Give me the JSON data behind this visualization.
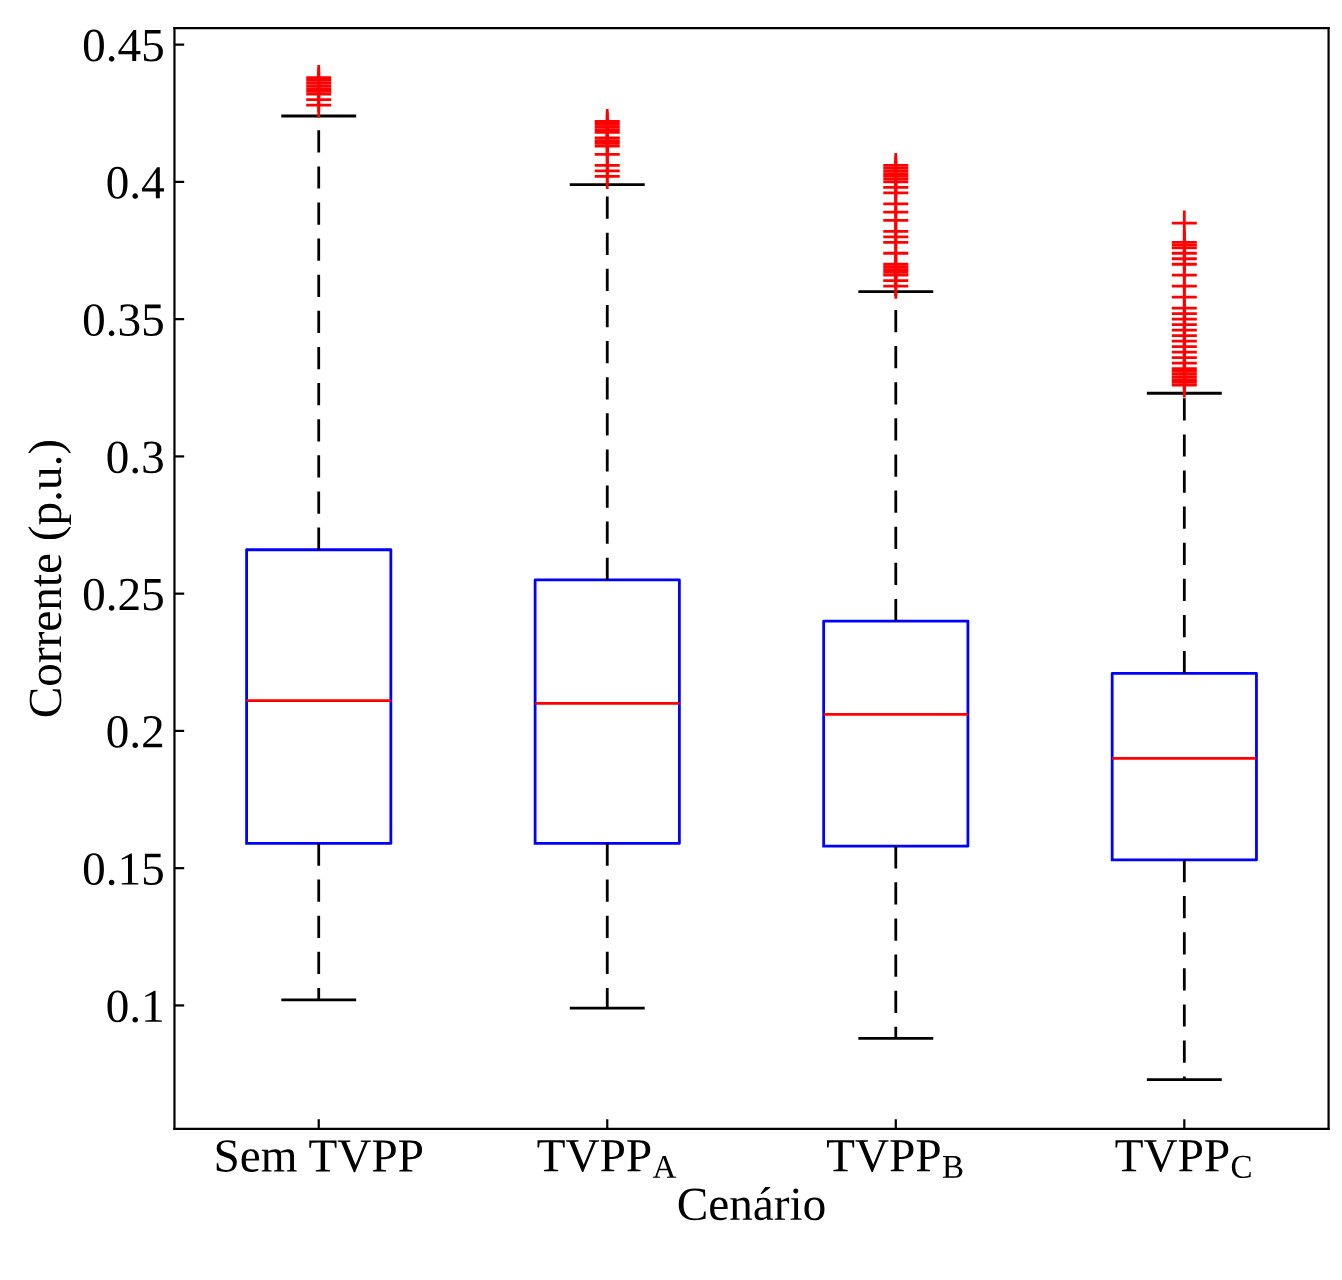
{
  "chart_data": {
    "type": "box",
    "xlabel": "Cenário",
    "ylabel": "Corrente (p.u.)",
    "categories": [
      "Sem TVPP",
      "TVPP$_{A}$",
      "TVPP$_{B}$",
      "TVPP$_{C}$"
    ],
    "ylim": [
      0.055,
      0.456
    ],
    "yticks": [
      0.1,
      0.15,
      0.2,
      0.25,
      0.3,
      0.35,
      0.4,
      0.45
    ],
    "grid": false,
    "marker": "cross",
    "boxes": [
      {
        "low": 0.102,
        "q1": 0.159,
        "median": 0.211,
        "q3": 0.266,
        "high": 0.424,
        "outliers": [
          0.428,
          0.43,
          0.432,
          0.433,
          0.434,
          0.435,
          0.436,
          0.437,
          0.438
        ]
      },
      {
        "low": 0.099,
        "q1": 0.159,
        "median": 0.21,
        "q3": 0.255,
        "high": 0.399,
        "outliers": [
          0.402,
          0.404,
          0.406,
          0.41,
          0.413,
          0.414,
          0.415,
          0.416,
          0.418,
          0.419,
          0.42,
          0.421,
          0.422
        ]
      },
      {
        "low": 0.088,
        "q1": 0.158,
        "median": 0.206,
        "q3": 0.24,
        "high": 0.36,
        "outliers": [
          0.362,
          0.364,
          0.366,
          0.367,
          0.368,
          0.369,
          0.37,
          0.374,
          0.378,
          0.38,
          0.382,
          0.386,
          0.389,
          0.392,
          0.396,
          0.398,
          0.4,
          0.401,
          0.402,
          0.403,
          0.404,
          0.405,
          0.406
        ]
      },
      {
        "low": 0.073,
        "q1": 0.153,
        "median": 0.19,
        "q3": 0.221,
        "high": 0.323,
        "outliers": [
          0.326,
          0.327,
          0.328,
          0.329,
          0.33,
          0.331,
          0.332,
          0.334,
          0.336,
          0.338,
          0.34,
          0.342,
          0.344,
          0.346,
          0.348,
          0.35,
          0.352,
          0.354,
          0.358,
          0.362,
          0.366,
          0.37,
          0.372,
          0.374,
          0.376,
          0.377,
          0.378,
          0.385
        ]
      }
    ],
    "color": "#0000ff"
  }
}
